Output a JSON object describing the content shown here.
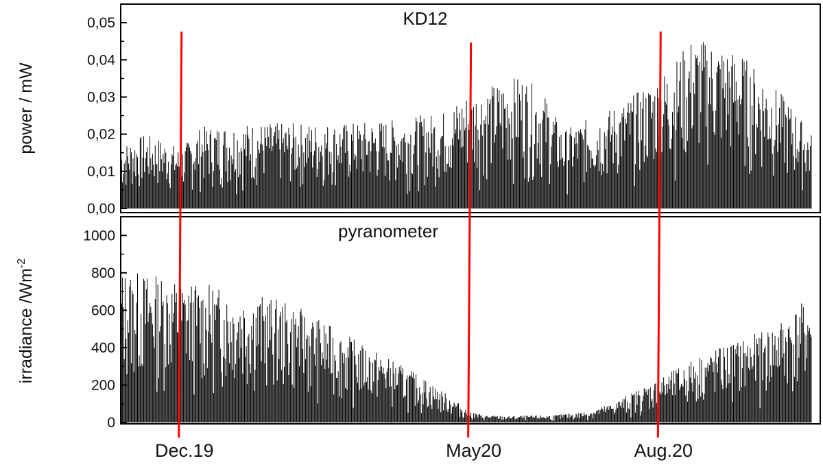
{
  "chart_data": [
    {
      "type": "bar",
      "title": "KD12",
      "ylabel": "power / mW",
      "ylim": [
        0,
        0.055
      ],
      "yticks": [
        0.0,
        0.01,
        0.02,
        0.03,
        0.04,
        0.05
      ],
      "ytick_labels": [
        "0,00",
        "0,01",
        "0,02",
        "0,03",
        "0,04",
        "0,05"
      ],
      "x_domain_days": 430,
      "envelope": [
        [
          0,
          0.017
        ],
        [
          15,
          0.02
        ],
        [
          30,
          0.018
        ],
        [
          37,
          0.016
        ],
        [
          50,
          0.022
        ],
        [
          80,
          0.023
        ],
        [
          110,
          0.023
        ],
        [
          140,
          0.023
        ],
        [
          170,
          0.024
        ],
        [
          200,
          0.026
        ],
        [
          215,
          0.031
        ],
        [
          235,
          0.034
        ],
        [
          250,
          0.036
        ],
        [
          265,
          0.03
        ],
        [
          275,
          0.021
        ],
        [
          290,
          0.024
        ],
        [
          310,
          0.028
        ],
        [
          330,
          0.034
        ],
        [
          345,
          0.04
        ],
        [
          355,
          0.046
        ],
        [
          370,
          0.045
        ],
        [
          385,
          0.042
        ],
        [
          400,
          0.036
        ],
        [
          415,
          0.029
        ],
        [
          430,
          0.02
        ]
      ],
      "color": "#000000"
    },
    {
      "type": "bar",
      "title": "pyranometer",
      "ylabel": "irradiance /Wm",
      "ylabel_sup": "-2",
      "ylim": [
        0,
        1100
      ],
      "yticks": [
        0,
        200,
        400,
        600,
        800,
        1000
      ],
      "ytick_labels": [
        "0",
        "200",
        "400",
        "600",
        "800",
        "1000"
      ],
      "x_domain_days": 430,
      "envelope": [
        [
          0,
          820
        ],
        [
          15,
          800
        ],
        [
          30,
          780
        ],
        [
          37,
          760
        ],
        [
          55,
          740
        ],
        [
          70,
          700
        ],
        [
          90,
          680
        ],
        [
          110,
          620
        ],
        [
          130,
          520
        ],
        [
          150,
          420
        ],
        [
          170,
          330
        ],
        [
          190,
          230
        ],
        [
          205,
          140
        ],
        [
          215,
          70
        ],
        [
          225,
          40
        ],
        [
          240,
          35
        ],
        [
          270,
          40
        ],
        [
          290,
          60
        ],
        [
          305,
          100
        ],
        [
          320,
          170
        ],
        [
          340,
          260
        ],
        [
          360,
          360
        ],
        [
          380,
          430
        ],
        [
          400,
          490
        ],
        [
          415,
          580
        ],
        [
          430,
          680
        ]
      ],
      "color": "#000000"
    }
  ],
  "markers": [
    {
      "label": "Dec.19",
      "day": 37,
      "color": "#ff0000"
    },
    {
      "label": "May20",
      "day": 217,
      "color": "#ff0000"
    },
    {
      "label": "Aug.20",
      "day": 335,
      "color": "#ff0000"
    }
  ]
}
